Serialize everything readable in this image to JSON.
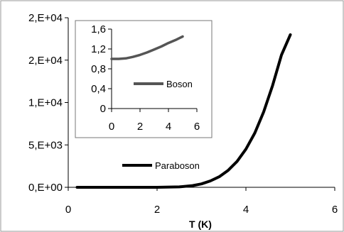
{
  "chart_data": [
    {
      "type": "line",
      "xlabel": "T (K)",
      "ylabel": "",
      "x_ticks": [
        "0",
        "2",
        "4",
        "6"
      ],
      "y_ticks": [
        "0,E+00",
        "5,E+03",
        "1,E+04",
        "2,E+04",
        "2,E+04"
      ],
      "xlim": [
        0,
        6
      ],
      "ylim": [
        0,
        20000
      ],
      "legend_placement": "lower-left",
      "series": [
        {
          "name": "Paraboson",
          "color": "#000000",
          "x": [
            0.2,
            0.5,
            1.0,
            1.5,
            2.0,
            2.5,
            2.8,
            3.0,
            3.2,
            3.4,
            3.6,
            3.8,
            4.0,
            4.2,
            4.4,
            4.6,
            4.8,
            5.0
          ],
          "y": [
            0,
            0,
            0,
            0,
            0,
            50,
            200,
            400,
            750,
            1250,
            2000,
            3050,
            4500,
            6400,
            8900,
            12000,
            15600,
            18000
          ]
        }
      ]
    },
    {
      "type": "line",
      "inset": true,
      "xlabel": "",
      "ylabel": "",
      "x_ticks": [
        "0",
        "2",
        "4",
        "6"
      ],
      "y_ticks": [
        "0",
        "0,4",
        "0,8",
        "1,2",
        "1,6"
      ],
      "xlim": [
        0,
        6
      ],
      "ylim": [
        0,
        1.6
      ],
      "legend_placement": "lower-left",
      "series": [
        {
          "name": "Boson",
          "color": "#555555",
          "x": [
            0.0,
            0.5,
            1.0,
            1.5,
            2.0,
            2.5,
            3.0,
            3.5,
            4.0,
            4.5,
            5.0
          ],
          "y": [
            1.0,
            1.0,
            1.01,
            1.04,
            1.08,
            1.13,
            1.19,
            1.25,
            1.32,
            1.38,
            1.45
          ]
        }
      ]
    }
  ]
}
